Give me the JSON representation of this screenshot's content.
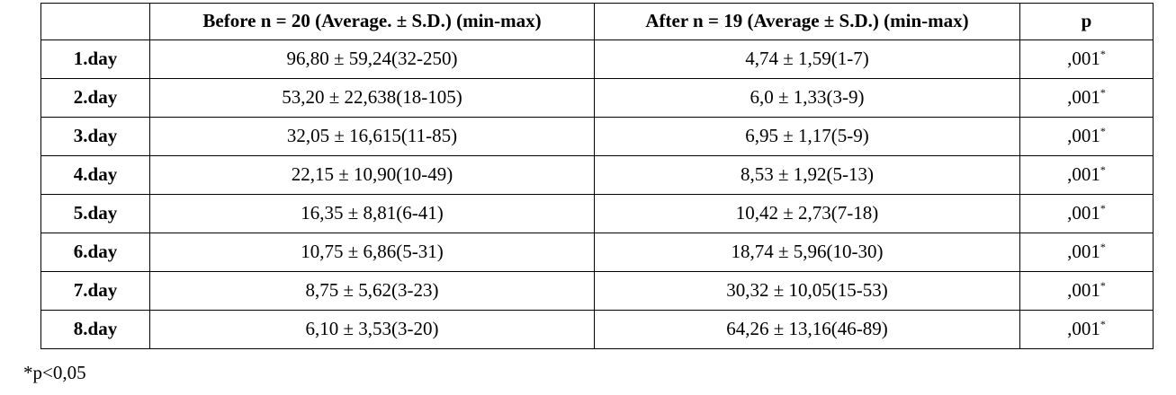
{
  "table": {
    "headers": [
      "",
      "Before n = 20 (Average. ± S.D.) (min-max)",
      "After n = 19 (Average ± S.D.) (min-max)",
      "p"
    ],
    "rows": [
      {
        "day": "1.day",
        "before": "96,80 ± 59,24(32-250)",
        "after": "4,74 ± 1,59(1-7)",
        "p": ",001",
        "p_mark": "*"
      },
      {
        "day": "2.day",
        "before": "53,20 ± 22,638(18-105)",
        "after": "6,0 ± 1,33(3-9)",
        "p": ",001",
        "p_mark": "*"
      },
      {
        "day": "3.day",
        "before": "32,05 ± 16,615(11-85)",
        "after": "6,95 ± 1,17(5-9)",
        "p": ",001",
        "p_mark": "*"
      },
      {
        "day": "4.day",
        "before": "22,15 ± 10,90(10-49)",
        "after": "8,53 ± 1,92(5-13)",
        "p": ",001",
        "p_mark": "*"
      },
      {
        "day": "5.day",
        "before": "16,35 ± 8,81(6-41)",
        "after": "10,42 ± 2,73(7-18)",
        "p": ",001",
        "p_mark": "*"
      },
      {
        "day": "6.day",
        "before": "10,75 ± 6,86(5-31)",
        "after": "18,74 ± 5,96(10-30)",
        "p": ",001",
        "p_mark": "*"
      },
      {
        "day": "7.day",
        "before": "8,75 ± 5,62(3-23)",
        "after": "30,32 ± 10,05(15-53)",
        "p": ",001",
        "p_mark": "*"
      },
      {
        "day": "8.day",
        "before": "6,10 ± 3,53(3-20)",
        "after": "64,26 ± 13,16(46-89)",
        "p": ",001",
        "p_mark": "*"
      }
    ]
  },
  "footnote": "*p<0,05"
}
